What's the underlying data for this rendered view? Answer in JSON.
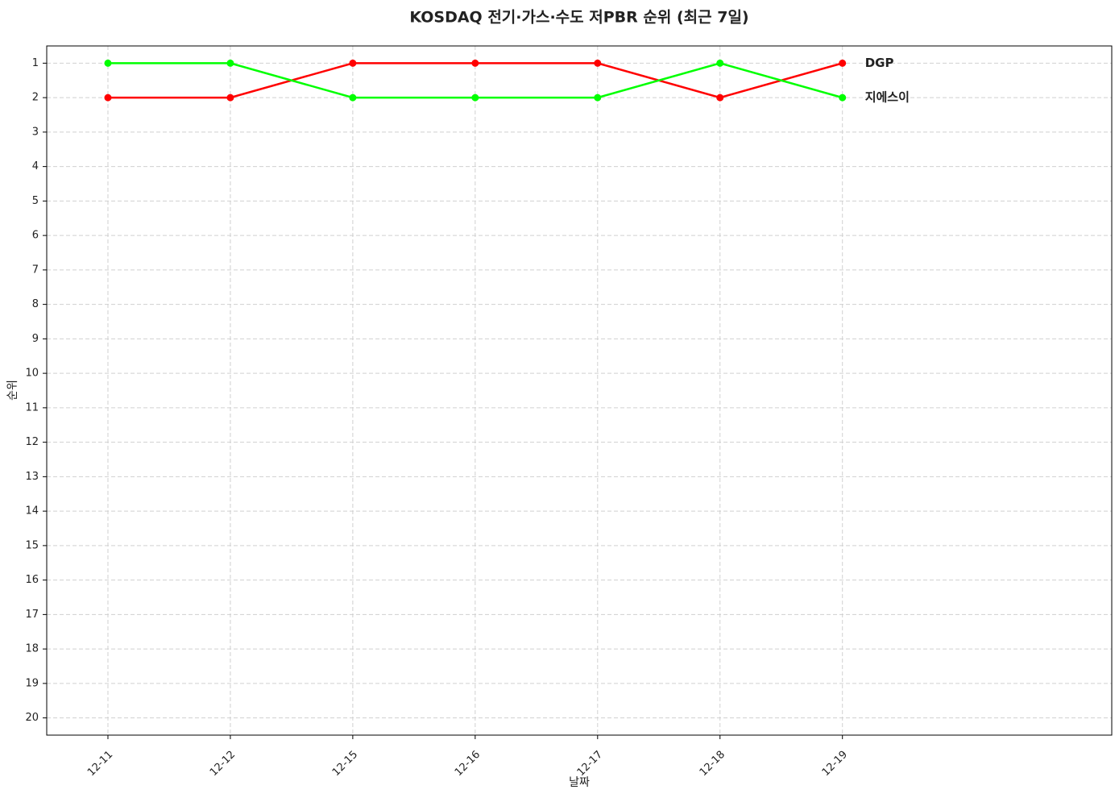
{
  "chart_data": {
    "type": "line",
    "title": "KOSDAQ 전기·가스·수도 저PBR 순위 (최근 7일)",
    "x_label": "날짜",
    "y_label": "순위",
    "categories": [
      "12-11",
      "12-12",
      "12-15",
      "12-16",
      "12-17",
      "12-18",
      "12-19"
    ],
    "series": [
      {
        "name": "DGP",
        "color": "#ff0000",
        "values": [
          2,
          2,
          1,
          1,
          1,
          2,
          1
        ]
      },
      {
        "name": "지에스이",
        "color": "#00ff00",
        "values": [
          1,
          1,
          2,
          2,
          2,
          1,
          2
        ]
      }
    ],
    "xlim": [
      -0.5,
      8.2
    ],
    "ylim": [
      0.5,
      20.5
    ],
    "y_inverted": true,
    "yticks": [
      1,
      2,
      3,
      4,
      5,
      6,
      7,
      8,
      9,
      10,
      11,
      12,
      13,
      14,
      15,
      16,
      17,
      18,
      19,
      20
    ],
    "grid": true
  }
}
